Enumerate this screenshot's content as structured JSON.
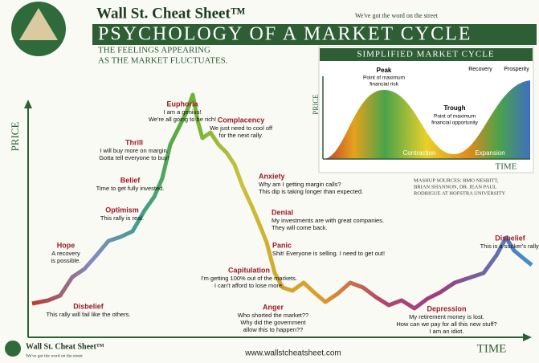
{
  "header": {
    "brand": "Wall St. Cheat Sheet™",
    "tagline": "We've got the word on the street",
    "title": "Psychology of a Market Cycle",
    "subtitle": [
      "THE FEELINGS APPEARING",
      "AS THE MARKET FLUCTUATES."
    ]
  },
  "axes": {
    "y": "PRICE",
    "x": "TIME"
  },
  "stages": [
    {
      "title": "Hope",
      "lines": [
        "A recovery",
        "is possible."
      ]
    },
    {
      "title": "Disbelief",
      "lines": [
        "This rally will fail like the others."
      ]
    },
    {
      "title": "Optimism",
      "lines": [
        "This rally is real."
      ]
    },
    {
      "title": "Belief",
      "lines": [
        "Time to get fully invested."
      ]
    },
    {
      "title": "Thrill",
      "lines": [
        "I will buy more on margin.",
        "Gotta tell everyone to buy!"
      ]
    },
    {
      "title": "Euphoria",
      "lines": [
        "I am a genius!",
        "We're all going to be rich!"
      ]
    },
    {
      "title": "Complacency",
      "lines": [
        "We just need to cool off",
        "for the next rally."
      ]
    },
    {
      "title": "Anxiety",
      "lines": [
        "Why am I getting margin calls?",
        "This dip is taking longer than expected."
      ]
    },
    {
      "title": "Denial",
      "lines": [
        "My investments are with great companies.",
        "They will come back."
      ]
    },
    {
      "title": "Panic",
      "lines": [
        "Shit! Everyone is selling. I need to get out!"
      ]
    },
    {
      "title": "Capitulation",
      "lines": [
        "I'm getting 100% out of the markets.",
        "I can't afford to lose more."
      ]
    },
    {
      "title": "Anger",
      "lines": [
        "Who shorted the market??",
        "Why did the government",
        "allow this to happen??"
      ]
    },
    {
      "title": "Depression",
      "lines": [
        "My retirement money is lost.",
        "How can we pay for all this new stuff?",
        "I am an idiot."
      ]
    },
    {
      "title": "Disbelief",
      "lines": [
        "This is a sucker's rally."
      ]
    }
  ],
  "inset": {
    "title": "Simplified Market Cycle",
    "peak": "Peak",
    "peak_note": [
      "Point of maximum",
      "financial risk"
    ],
    "trough": "Trough",
    "trough_note": [
      "Point of maximum",
      "financial opportunity"
    ],
    "recovery": "Recovery",
    "prosperity": "Prosperity",
    "contraction": "Contraction",
    "expansion": "Expansion",
    "y_label": "PRICE",
    "x_label": "TIME"
  },
  "sources": [
    "Mashup Sources: BMO Nesbitt,",
    "Brian Shannon, Dr. Jean Paul",
    "Rodrigue at Hofstra University"
  ],
  "footer": {
    "brand": "Wall St. Cheat Sheet™",
    "tagline": "We've got the word on the street",
    "url": "www.wallstcheatsheet.com",
    "time": "TIME"
  }
}
